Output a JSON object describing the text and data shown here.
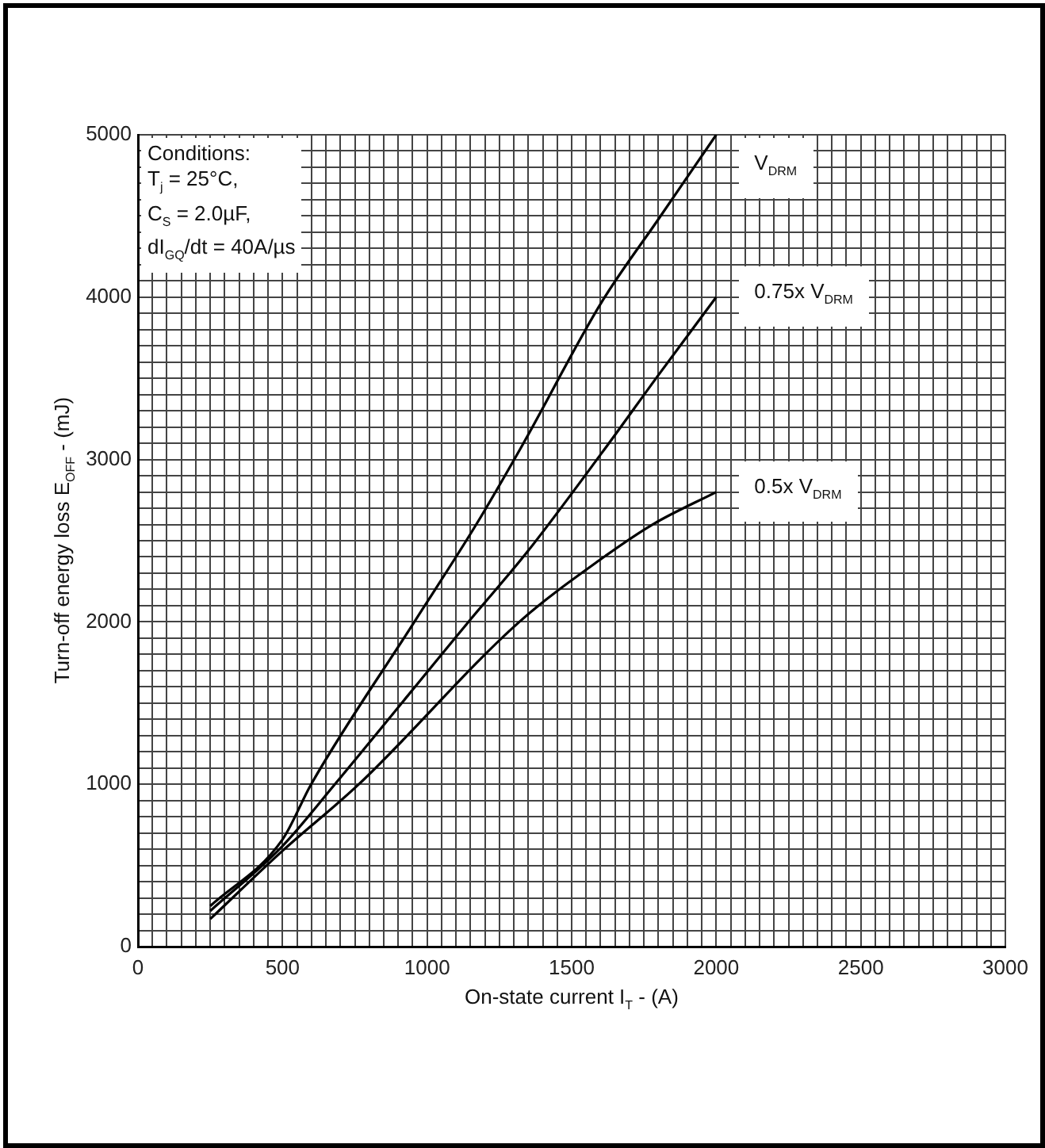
{
  "chart_data": {
    "type": "line",
    "xlabel": "On-state current I$_{T}$ - (A)",
    "ylabel": "Turn-off energy loss E$_{OFF}$ - (mJ)",
    "xlim": [
      0,
      3000
    ],
    "ylim": [
      0,
      5000
    ],
    "xticks": [
      0,
      {
        "value": 50,
        "label": null
      },
      {
        "value": 100,
        "label": null
      },
      {
        "value": 150,
        "label": null
      },
      {
        "value": 200,
        "label": null
      },
      {
        "value": 250,
        "label": null
      },
      {
        "value": 300,
        "label": null
      },
      {
        "value": 350,
        "label": null
      },
      {
        "value": 400,
        "label": null
      },
      {
        "value": 450,
        "label": null
      },
      500,
      {
        "value": 550,
        "label": null
      },
      {
        "value": 600,
        "label": null
      },
      {
        "value": 650,
        "label": null
      },
      {
        "value": 700,
        "label": null
      },
      {
        "value": 750,
        "label": null
      },
      {
        "value": 800,
        "label": null
      },
      {
        "value": 850,
        "label": null
      },
      {
        "value": 900,
        "label": null
      },
      {
        "value": 950,
        "label": null
      },
      1000,
      {
        "value": 1050,
        "label": null
      },
      {
        "value": 1100,
        "label": null
      },
      {
        "value": 1150,
        "label": null
      },
      {
        "value": 1200,
        "label": null
      },
      {
        "value": 1250,
        "label": null
      },
      {
        "value": 1300,
        "label": null
      },
      {
        "value": 1350,
        "label": null
      },
      {
        "value": 1400,
        "label": null
      },
      {
        "value": 1450,
        "label": null
      },
      1500,
      {
        "value": 1550,
        "label": null
      },
      {
        "value": 1600,
        "label": null
      },
      {
        "value": 1650,
        "label": null
      },
      {
        "value": 1700,
        "label": null
      },
      {
        "value": 1750,
        "label": null
      },
      {
        "value": 1800,
        "label": null
      },
      {
        "value": 1850,
        "label": null
      },
      {
        "value": 1900,
        "label": null
      },
      {
        "value": 1950,
        "label": null
      },
      2000,
      {
        "value": 2050,
        "label": null
      },
      {
        "value": 2100,
        "label": null
      },
      {
        "value": 2150,
        "label": null
      },
      {
        "value": 2200,
        "label": null
      },
      {
        "value": 2250,
        "label": null
      },
      {
        "value": 2300,
        "label": null
      },
      {
        "value": 2350,
        "label": null
      },
      {
        "value": 2400,
        "label": null
      },
      {
        "value": 2450,
        "label": null
      },
      2500,
      {
        "value": 2550,
        "label": null
      },
      {
        "value": 2600,
        "label": null
      },
      {
        "value": 2650,
        "label": null
      },
      {
        "value": 2700,
        "label": null
      },
      {
        "value": 2750,
        "label": null
      },
      {
        "value": 2800,
        "label": null
      },
      {
        "value": 2850,
        "label": null
      },
      {
        "value": 2900,
        "label": null
      },
      {
        "value": 2950,
        "label": null
      },
      3000
    ],
    "yticks": [
      0,
      {
        "value": 100,
        "label": null
      },
      {
        "value": 200,
        "label": null
      },
      {
        "value": 300,
        "label": null
      },
      {
        "value": 400,
        "label": null
      },
      {
        "value": 500,
        "label": null
      },
      {
        "value": 600,
        "label": null
      },
      {
        "value": 700,
        "label": null
      },
      {
        "value": 800,
        "label": null
      },
      {
        "value": 900,
        "label": null
      },
      1000,
      {
        "value": 1100,
        "label": null
      },
      {
        "value": 1200,
        "label": null
      },
      {
        "value": 1300,
        "label": null
      },
      {
        "value": 1400,
        "label": null
      },
      {
        "value": 1500,
        "label": null
      },
      {
        "value": 1600,
        "label": null
      },
      {
        "value": 1700,
        "label": null
      },
      {
        "value": 1800,
        "label": null
      },
      {
        "value": 1900,
        "label": null
      },
      2000,
      {
        "value": 2100,
        "label": null
      },
      {
        "value": 2200,
        "label": null
      },
      {
        "value": 2300,
        "label": null
      },
      {
        "value": 2400,
        "label": null
      },
      {
        "value": 2500,
        "label": null
      },
      {
        "value": 2600,
        "label": null
      },
      {
        "value": 2700,
        "label": null
      },
      {
        "value": 2800,
        "label": null
      },
      {
        "value": 2900,
        "label": null
      },
      3000,
      {
        "value": 3100,
        "label": null
      },
      {
        "value": 3200,
        "label": null
      },
      {
        "value": 3300,
        "label": null
      },
      {
        "value": 3400,
        "label": null
      },
      {
        "value": 3500,
        "label": null
      },
      {
        "value": 3600,
        "label": null
      },
      {
        "value": 3700,
        "label": null
      },
      {
        "value": 3800,
        "label": null
      },
      {
        "value": 3900,
        "label": null
      },
      4000,
      {
        "value": 4100,
        "label": null
      },
      {
        "value": 4200,
        "label": null
      },
      {
        "value": 4300,
        "label": null
      },
      {
        "value": 4400,
        "label": null
      },
      {
        "value": 4500,
        "label": null
      },
      {
        "value": 4600,
        "label": null
      },
      {
        "value": 4700,
        "label": null
      },
      {
        "value": 4800,
        "label": null
      },
      {
        "value": 4900,
        "label": null
      },
      5000
    ],
    "grid": true,
    "marker": "none",
    "line_style": "solid",
    "annotations": [
      "Conditions:",
      "T$_{j}$ = 25°C,",
      "C$_{S}$ = 2.0µF,",
      "dI$_{GQ}$/dt = 40A/µs"
    ],
    "series": [
      {
        "name": "V$_{DRM}$",
        "color": "#000000",
        "x": [
          250,
          500,
          599,
          956,
          1170,
          1330,
          1604,
          1800,
          2000
        ],
        "values": [
          250,
          660,
          1000,
          2000,
          2600,
          3090,
          3970,
          4480,
          5000
        ]
      },
      {
        "name": "0.75x V$_{DRM}$",
        "color": "#000000",
        "x": [
          250,
          500,
          681,
          1143,
          1346,
          1604,
          1800,
          2000
        ],
        "values": [
          220,
          620,
          1000,
          2000,
          2430,
          3040,
          3520,
          4000
        ]
      },
      {
        "name": "0.5x V$_{DRM}$",
        "color": "#000000",
        "x": [
          250,
          500,
          764,
          1319,
          1604,
          1780,
          2000
        ],
        "values": [
          170,
          590,
          1000,
          2000,
          2390,
          2600,
          2800
        ]
      }
    ]
  }
}
